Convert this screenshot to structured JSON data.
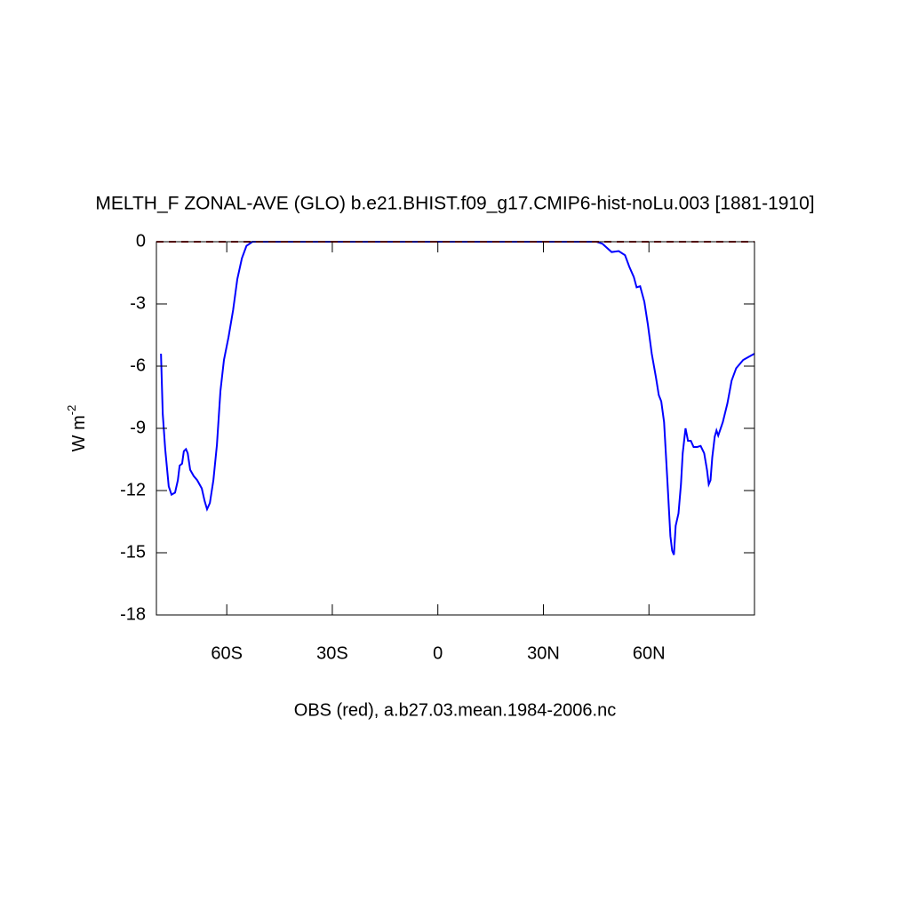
{
  "chart_data": {
    "type": "line",
    "title": "MELTH_F ZONAL-AVE (GLO) b.e21.BHIST.f09_g17.CMIP6-hist-noLu.003 [1881-1910]",
    "subtitle": "OBS (red), a.b27.03.mean.1984-2006.nc",
    "ylabel": "W m",
    "ylabel_superscript": "-2",
    "xlim": [
      -80,
      90
    ],
    "ylim": [
      -18,
      0
    ],
    "xticks": [
      {
        "value": -60,
        "label": "60S"
      },
      {
        "value": -30,
        "label": "30S"
      },
      0,
      {
        "value": 30,
        "label": "30N"
      },
      {
        "value": 60,
        "label": "60N"
      }
    ],
    "yticks": [
      0,
      -3,
      -6,
      -9,
      -12,
      -15,
      -18
    ],
    "series": [
      {
        "color": "#0000ff",
        "dash": false,
        "x": [
          -78.7,
          -78.2,
          -77.5,
          -76.5,
          -75.7,
          -74.7,
          -73.9,
          -73.4,
          -72.7,
          -72.2,
          -71.6,
          -71.1,
          -70.4,
          -69.4,
          -68.4,
          -67.1,
          -66.3,
          -65.6,
          -64.8,
          -63.8,
          -62.8,
          -61.8,
          -60.8,
          -59.5,
          -58.2,
          -57.0,
          -55.7,
          -54.4,
          -52.7,
          45.1,
          46.8,
          49.4,
          51.4,
          53.2,
          54.4,
          55.7,
          56.5,
          57.5,
          58.7,
          59.7,
          60.8,
          62.0,
          62.8,
          63.5,
          64.3,
          65.3,
          66.1,
          66.6,
          67.1,
          67.6,
          68.4,
          69.1,
          69.6,
          70.4,
          71.1,
          71.9,
          72.7,
          73.7,
          74.7,
          75.7,
          76.5,
          77.0,
          77.5,
          78.0,
          78.7,
          79.2,
          79.7,
          81.0,
          82.3,
          83.5,
          84.8,
          86.8,
          88.9,
          90
        ],
        "values": [
          -5.4,
          -8.3,
          -10.0,
          -11.8,
          -12.2,
          -12.1,
          -11.5,
          -10.8,
          -10.7,
          -10.1,
          -10.0,
          -10.2,
          -11.0,
          -11.3,
          -11.5,
          -11.9,
          -12.5,
          -12.9,
          -12.6,
          -11.5,
          -9.8,
          -7.2,
          -5.7,
          -4.6,
          -3.3,
          -1.8,
          -0.8,
          -0.2,
          0,
          0,
          -0.1,
          -0.5,
          -0.45,
          -0.65,
          -1.2,
          -1.7,
          -2.2,
          -2.15,
          -2.9,
          -4.0,
          -5.4,
          -6.55,
          -7.4,
          -7.7,
          -8.7,
          -11.7,
          -14.2,
          -14.9,
          -15.1,
          -13.7,
          -13.1,
          -11.7,
          -10.2,
          -9.0,
          -9.6,
          -9.6,
          -9.9,
          -9.9,
          -9.85,
          -10.2,
          -11.0,
          -11.7,
          -11.5,
          -10.4,
          -9.4,
          -9.1,
          -9.35,
          -8.7,
          -7.8,
          -6.7,
          -6.1,
          -5.7,
          -5.5,
          -5.4
        ]
      },
      {
        "color": "#a00000",
        "dash": true,
        "x": [
          -80,
          90
        ],
        "values": [
          0,
          0
        ]
      }
    ]
  }
}
